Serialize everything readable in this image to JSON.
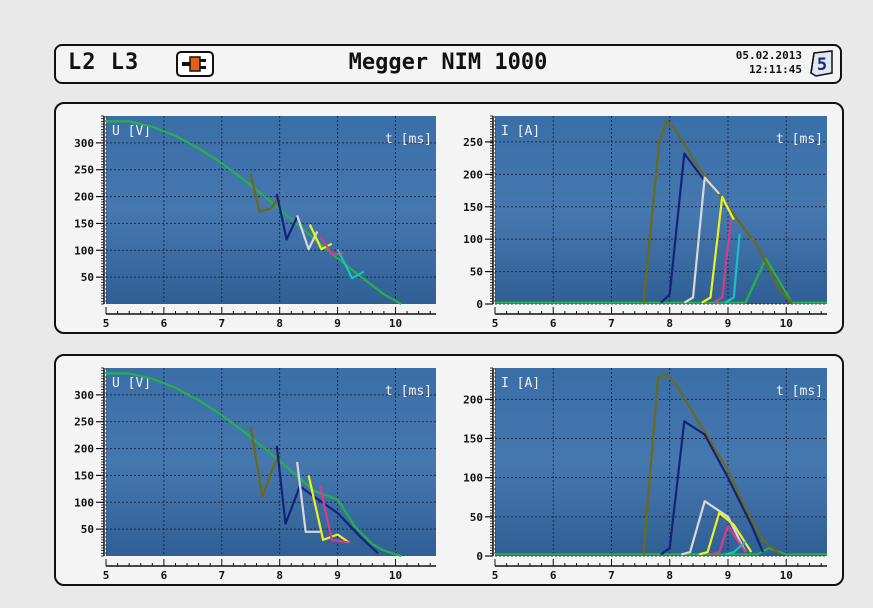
{
  "header": {
    "phases": "L2 L3",
    "title": "Megger NIM 1000",
    "date": "05.02.2013",
    "time": "12:11:45",
    "page": "5",
    "plug_icon": "plug-icon"
  },
  "colors": {
    "olive": "#6b6a16",
    "navy": "#14237a",
    "white": "#d8d8d8",
    "yellow": "#f2ef21",
    "pink": "#d43c8c",
    "teal": "#1cc0c0",
    "green": "#25b04a",
    "plot_bg": "#3f72a8"
  },
  "chart_data": [
    {
      "type": "line",
      "ylabel": "U [V]",
      "xlabel": "t [ms]",
      "xlim": [
        5,
        10.7
      ],
      "ylim": [
        0,
        350
      ],
      "xticks": [
        5,
        6,
        7,
        8,
        9,
        10
      ],
      "yticks": [
        50,
        100,
        150,
        200,
        250,
        300
      ],
      "series": [
        {
          "color": "green",
          "x": [
            5,
            5.4,
            5.8,
            6.2,
            6.6,
            7.0,
            7.4,
            7.8,
            8.2,
            8.6,
            9.0,
            9.4,
            9.8,
            10.1
          ],
          "y": [
            340,
            340,
            330,
            313,
            290,
            262,
            230,
            195,
            158,
            121,
            85,
            51,
            18,
            0
          ]
        },
        {
          "color": "olive",
          "x": [
            7.5,
            7.65,
            7.85,
            8.0
          ],
          "y": [
            242,
            172,
            178,
            200
          ]
        },
        {
          "color": "navy",
          "x": [
            7.95,
            8.12,
            8.3
          ],
          "y": [
            205,
            120,
            162
          ]
        },
        {
          "color": "white",
          "x": [
            8.3,
            8.5,
            8.65
          ],
          "y": [
            165,
            102,
            135
          ]
        },
        {
          "color": "yellow",
          "x": [
            8.52,
            8.72,
            8.9
          ],
          "y": [
            148,
            102,
            112
          ]
        },
        {
          "color": "pink",
          "x": [
            8.7,
            8.92,
            9.1
          ],
          "y": [
            125,
            92,
            95
          ]
        },
        {
          "color": "teal",
          "x": [
            9.0,
            9.25,
            9.45
          ],
          "y": [
            102,
            48,
            60
          ]
        }
      ]
    },
    {
      "type": "line",
      "ylabel": "I [A]",
      "xlabel": "t [ms]",
      "xlim": [
        5,
        10.7
      ],
      "ylim": [
        0,
        290
      ],
      "xticks": [
        5,
        6,
        7,
        8,
        9,
        10
      ],
      "yticks": [
        0,
        50,
        100,
        150,
        200,
        250
      ],
      "series": [
        {
          "color": "green",
          "x": [
            5,
            9.3,
            9.65,
            10.1,
            10.7
          ],
          "y": [
            2,
            2,
            70,
            2,
            2
          ]
        },
        {
          "color": "olive",
          "x": [
            7.55,
            7.82,
            7.95,
            8.1,
            8.5,
            9.0,
            9.5,
            9.9,
            10.1
          ],
          "y": [
            2,
            250,
            283,
            268,
            210,
            150,
            90,
            20,
            2
          ]
        },
        {
          "color": "navy",
          "x": [
            7.85,
            8.0,
            8.25,
            8.6
          ],
          "y": [
            2,
            15,
            232,
            190
          ]
        },
        {
          "color": "white",
          "x": [
            8.25,
            8.4,
            8.6,
            8.85
          ],
          "y": [
            2,
            10,
            195,
            170
          ]
        },
        {
          "color": "yellow",
          "x": [
            8.55,
            8.7,
            8.9,
            9.1
          ],
          "y": [
            2,
            10,
            165,
            130
          ]
        },
        {
          "color": "pink",
          "x": [
            8.75,
            8.9,
            9.05
          ],
          "y": [
            2,
            10,
            130
          ]
        },
        {
          "color": "teal",
          "x": [
            8.95,
            9.1,
            9.2
          ],
          "y": [
            2,
            10,
            108
          ]
        }
      ]
    },
    {
      "type": "line",
      "ylabel": "U [V]",
      "xlabel": "t [ms]",
      "xlim": [
        5,
        10.7
      ],
      "ylim": [
        0,
        350
      ],
      "xticks": [
        5,
        6,
        7,
        8,
        9,
        10
      ],
      "yticks": [
        50,
        100,
        150,
        200,
        250,
        300
      ],
      "series": [
        {
          "color": "green",
          "x": [
            5,
            5.4,
            5.8,
            6.2,
            6.6,
            7.0,
            7.4,
            7.8,
            8.2,
            8.6,
            9.0,
            9.3,
            9.6,
            9.8,
            10.1
          ],
          "y": [
            340,
            340,
            330,
            313,
            290,
            262,
            230,
            195,
            158,
            121,
            105,
            55,
            22,
            10,
            0
          ]
        },
        {
          "color": "olive",
          "x": [
            7.5,
            7.7,
            7.9,
            8.0
          ],
          "y": [
            240,
            110,
            168,
            190
          ]
        },
        {
          "color": "navy",
          "x": [
            7.95,
            8.1,
            8.35,
            8.6,
            9.0,
            9.4,
            9.7
          ],
          "y": [
            205,
            60,
            130,
            110,
            80,
            35,
            5
          ]
        },
        {
          "color": "white",
          "x": [
            8.3,
            8.45,
            8.7
          ],
          "y": [
            175,
            45,
            45
          ]
        },
        {
          "color": "yellow",
          "x": [
            8.5,
            8.75,
            9.0,
            9.2
          ],
          "y": [
            150,
            30,
            40,
            25
          ]
        },
        {
          "color": "pink",
          "x": [
            8.7,
            8.9,
            9.2
          ],
          "y": [
            130,
            30,
            25
          ]
        }
      ]
    },
    {
      "type": "line",
      "ylabel": "I [A]",
      "xlabel": "t [ms]",
      "xlim": [
        5,
        10.7
      ],
      "ylim": [
        0,
        240
      ],
      "xticks": [
        5,
        6,
        7,
        8,
        9,
        10
      ],
      "yticks": [
        0,
        50,
        100,
        150,
        200
      ],
      "series": [
        {
          "color": "green",
          "x": [
            5,
            9.5,
            9.7,
            10.0,
            10.7
          ],
          "y": [
            2,
            2,
            10,
            2,
            2
          ]
        },
        {
          "color": "olive",
          "x": [
            7.55,
            7.8,
            7.95,
            8.1,
            8.5,
            9.0,
            9.3,
            9.6,
            9.9
          ],
          "y": [
            2,
            228,
            232,
            220,
            170,
            110,
            60,
            20,
            2
          ]
        },
        {
          "color": "navy",
          "x": [
            7.85,
            8.0,
            8.25,
            8.6,
            9.0,
            9.4,
            9.6
          ],
          "y": [
            2,
            10,
            172,
            155,
            100,
            40,
            5
          ]
        },
        {
          "color": "white",
          "x": [
            8.2,
            8.35,
            8.6,
            9.0,
            9.3
          ],
          "y": [
            2,
            5,
            70,
            50,
            5
          ]
        },
        {
          "color": "yellow",
          "x": [
            8.5,
            8.65,
            8.85,
            9.1,
            9.4
          ],
          "y": [
            2,
            5,
            55,
            40,
            5
          ]
        },
        {
          "color": "pink",
          "x": [
            8.7,
            8.85,
            9.0,
            9.3
          ],
          "y": [
            2,
            5,
            38,
            5
          ]
        },
        {
          "color": "teal",
          "x": [
            8.95,
            9.1,
            9.3
          ],
          "y": [
            2,
            5,
            18
          ]
        }
      ]
    }
  ]
}
